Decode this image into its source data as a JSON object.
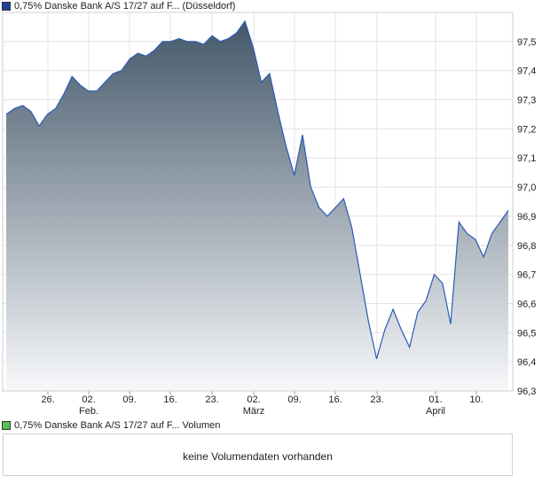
{
  "price_legend": {
    "label": "0,75% Danske Bank A/S 17/27 auf F... (Düsseldorf)",
    "color": "#1f3f9f"
  },
  "volume_legend": {
    "label": "0,75% Danske Bank A/S 17/27 auf F... Volumen",
    "color": "#55c055"
  },
  "volume_panel": {
    "message": "keine Volumendaten vorhanden"
  },
  "chart_data": {
    "type": "area",
    "title": "",
    "xlabel": "",
    "ylabel": "",
    "ylim": [
      96.3,
      97.6
    ],
    "y_ticks": [
      "97,5",
      "97,4",
      "97,3",
      "97,2",
      "97,1",
      "97,0",
      "96,9",
      "96,8",
      "96,7",
      "96,6",
      "96,5",
      "96,4",
      "96,3"
    ],
    "x_ticks": [
      {
        "day": "26.",
        "month": ""
      },
      {
        "day": "02.",
        "month": "Feb."
      },
      {
        "day": "09.",
        "month": ""
      },
      {
        "day": "16.",
        "month": ""
      },
      {
        "day": "23.",
        "month": ""
      },
      {
        "day": "02.",
        "month": "März"
      },
      {
        "day": "09.",
        "month": ""
      },
      {
        "day": "16.",
        "month": ""
      },
      {
        "day": "23.",
        "month": ""
      },
      {
        "day": "01.",
        "month": "April"
      },
      {
        "day": "10.",
        "month": ""
      }
    ],
    "grid": true,
    "line_color": "#2b5bb5",
    "fill_top_color": "#44586a",
    "fill_bottom_color": "#f7f8fa",
    "series": [
      {
        "values": [
          97.25,
          97.27,
          97.28,
          97.26,
          97.21,
          97.25,
          97.27,
          97.32,
          97.38,
          97.35,
          97.33,
          97.33,
          97.36,
          97.39,
          97.4,
          97.44,
          97.46,
          97.45,
          97.47,
          97.5,
          97.5,
          97.51,
          97.5,
          97.5,
          97.49,
          97.52,
          97.5,
          97.51,
          97.53,
          97.57,
          97.48,
          97.36,
          97.39,
          97.26,
          97.14,
          97.04,
          97.18,
          97.0,
          96.93,
          96.9,
          96.93,
          96.96,
          96.86,
          96.7,
          96.54,
          96.41,
          96.51,
          96.58,
          96.51,
          96.45,
          96.57,
          96.61,
          96.7,
          96.67,
          96.53,
          96.88,
          96.84,
          96.82,
          96.76,
          96.84,
          96.88,
          96.92
        ]
      }
    ]
  }
}
